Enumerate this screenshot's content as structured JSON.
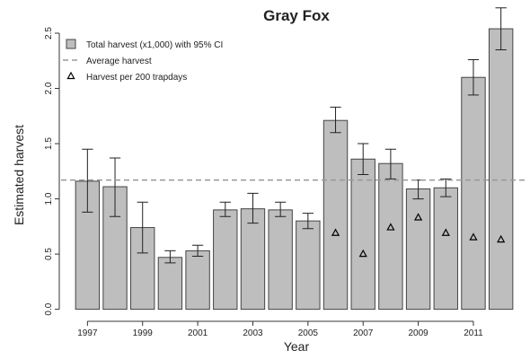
{
  "chart_data": {
    "type": "bar",
    "title": "Gray Fox",
    "xlabel": "Year",
    "ylabel": "Estimated harvest",
    "categories": [
      "1997",
      null,
      "1999",
      null,
      "2001",
      null,
      "2003",
      null,
      "2005",
      null,
      "2007",
      null,
      "2009",
      null,
      "2011",
      null
    ],
    "series": [
      {
        "name": "Total harvest (x1,000) with 95% CI",
        "color": "#bebebe",
        "values": [
          1.16,
          1.11,
          0.74,
          0.47,
          0.53,
          0.9,
          0.91,
          0.9,
          0.8,
          1.71,
          1.36,
          1.32,
          1.09,
          1.1,
          2.1,
          2.54
        ],
        "lower": [
          0.88,
          0.84,
          0.51,
          0.42,
          0.48,
          0.84,
          0.78,
          0.84,
          0.73,
          1.6,
          1.22,
          1.18,
          1.0,
          1.02,
          1.94,
          2.35
        ],
        "upper": [
          1.45,
          1.37,
          0.97,
          0.53,
          0.58,
          0.97,
          1.05,
          0.97,
          0.87,
          1.83,
          1.5,
          1.45,
          1.17,
          1.18,
          2.26,
          2.73
        ]
      },
      {
        "name": "Harvest per 200 trapdays",
        "type": "scatter",
        "marker": "triangle",
        "color": "#000000",
        "values": [
          null,
          null,
          null,
          null,
          null,
          null,
          null,
          null,
          null,
          0.69,
          0.5,
          0.74,
          0.83,
          0.69,
          0.65,
          0.63
        ]
      }
    ],
    "average_line": {
      "name": "Average harvest",
      "value": 1.17,
      "color": "#999999",
      "style": "dashed"
    },
    "ylim": [
      -0.06,
      2.76
    ],
    "yticks": [
      {
        "value": 0,
        "label": "0.0"
      },
      0.5,
      {
        "value": 1,
        "label": "1.0"
      },
      1.5,
      {
        "value": 2,
        "label": "2.0"
      },
      2.5
    ],
    "legend": "top-left"
  }
}
